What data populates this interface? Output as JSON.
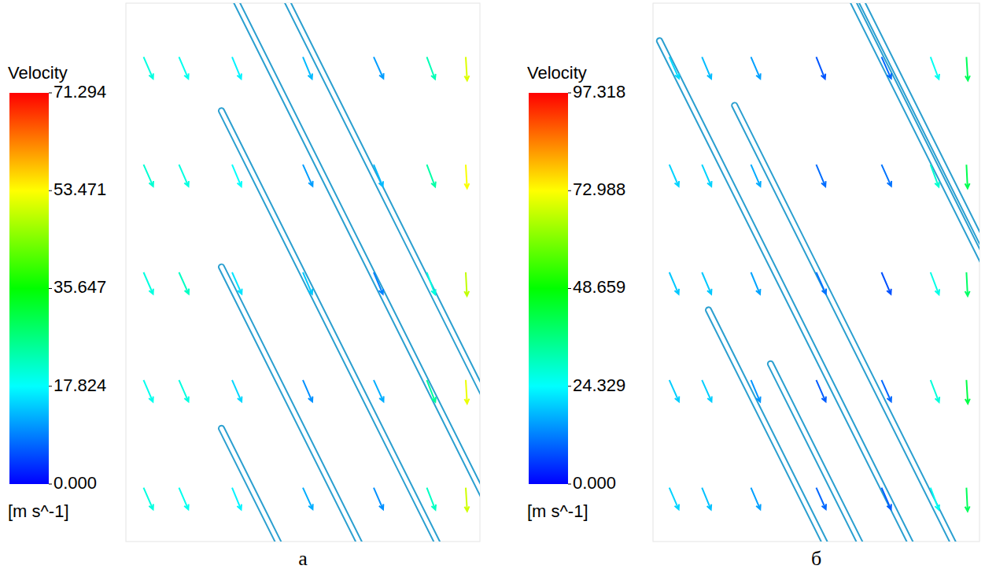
{
  "chart_data": [
    {
      "type": "vector",
      "label": "а",
      "xlim": [
        0,
        100
      ],
      "ylim": [
        0,
        100
      ],
      "tick_labels": false,
      "colorbar": {
        "title": "Velocity",
        "unit": "[m s^-1]",
        "range": [
          0,
          71.294
        ],
        "ticks": [
          {
            "value": 0,
            "label": "0.000"
          },
          17.824,
          35.647,
          53.471,
          71.294
        ]
      },
      "x": [
        5,
        5,
        5,
        5,
        5,
        15,
        15,
        15,
        15,
        15,
        30,
        30,
        30,
        30,
        30,
        50,
        50,
        50,
        50,
        50,
        70,
        70,
        70,
        70,
        70,
        85,
        85,
        85,
        85,
        85,
        96,
        96,
        96,
        96,
        96
      ],
      "y": [
        10,
        30,
        50,
        70,
        90,
        10,
        30,
        50,
        70,
        90,
        10,
        30,
        50,
        70,
        90,
        10,
        30,
        50,
        70,
        90,
        10,
        30,
        50,
        70,
        90,
        10,
        30,
        50,
        70,
        90,
        10,
        30,
        50,
        70,
        90
      ],
      "u": [
        8,
        7.5,
        8,
        8.5,
        8,
        7.5,
        8,
        9,
        8,
        7.5,
        6.5,
        6,
        6.5,
        7,
        6.5,
        5,
        4,
        5.5,
        4.5,
        5,
        4,
        5,
        3.5,
        5,
        4.5,
        8,
        9,
        7,
        8.5,
        8,
        3,
        3,
        2.5,
        3,
        3
      ],
      "v": [
        -18.3,
        -17.5,
        -18.3,
        -19.2,
        -18.3,
        -17.5,
        -18.3,
        -20,
        -18.3,
        -17.5,
        -15.7,
        -13.7,
        -14.6,
        -16.6,
        -15.7,
        -11,
        -9.2,
        -12.9,
        -10,
        -12,
        -9.2,
        -11,
        -8.3,
        -12,
        -10,
        -20.5,
        -23.3,
        -18.7,
        -22.5,
        -21.5,
        -50,
        -52,
        -49,
        -53,
        -51
      ]
    },
    {
      "type": "vector",
      "label": "б",
      "xlim": [
        0,
        100
      ],
      "ylim": [
        0,
        100
      ],
      "tick_labels": false,
      "colorbar": {
        "title": "Velocity",
        "unit": "[m s^-1]",
        "range": [
          0,
          97.318
        ],
        "ticks": [
          {
            "value": 0,
            "label": "0.000"
          },
          24.329,
          48.659,
          72.988,
          97.318
        ]
      },
      "x": [
        5,
        5,
        5,
        5,
        5,
        15,
        15,
        15,
        15,
        15,
        30,
        30,
        30,
        30,
        30,
        50,
        50,
        50,
        50,
        50,
        70,
        70,
        70,
        70,
        70,
        85,
        85,
        85,
        85,
        85,
        96,
        96,
        96,
        96,
        96
      ],
      "y": [
        10,
        30,
        50,
        70,
        90,
        10,
        30,
        50,
        70,
        90,
        10,
        30,
        50,
        70,
        90,
        10,
        30,
        50,
        70,
        90,
        10,
        30,
        50,
        70,
        90,
        10,
        30,
        50,
        70,
        90,
        10,
        30,
        50,
        70,
        90
      ],
      "u": [
        8,
        8,
        7.5,
        8,
        8.5,
        7,
        8,
        7.5,
        8,
        7,
        6,
        5.5,
        6,
        6.5,
        6,
        4,
        3.5,
        4.5,
        4,
        3,
        3.5,
        4,
        3,
        4.5,
        4,
        9,
        10,
        9.5,
        10,
        9,
        2,
        2.5,
        2,
        2,
        2.5
      ],
      "v": [
        -18.5,
        -18,
        -17.5,
        -18.5,
        -19,
        -17,
        -18,
        -17.5,
        -18.5,
        -16.5,
        -14,
        -13,
        -14.5,
        -15,
        -14,
        -9,
        -8,
        -10,
        -9.5,
        -7.5,
        -8,
        -9,
        -7,
        -10,
        -9,
        -24,
        -26,
        -25,
        -27,
        -24,
        -40,
        -42,
        -39,
        -41,
        -40
      ]
    }
  ]
}
